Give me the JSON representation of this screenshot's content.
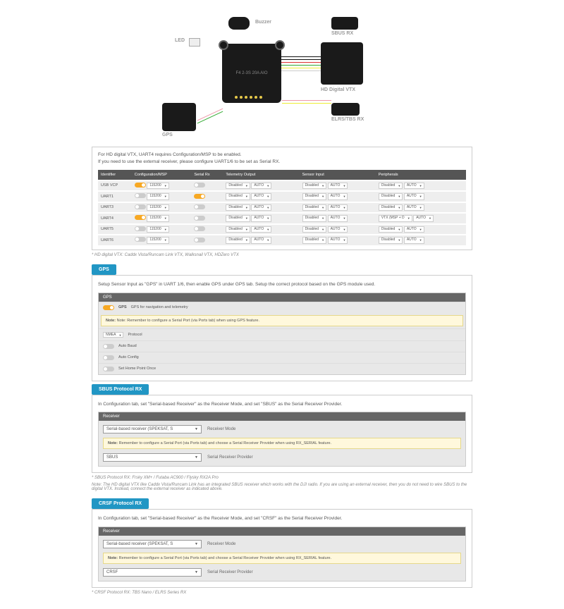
{
  "diagram": {
    "fc_label": "F4 2-3S 20A AIO",
    "labels": {
      "buzzer": "Buzzer",
      "sbus": "SBUS RX",
      "led": "LED",
      "vtx": "HD Digital VTX",
      "gps": "GPS",
      "elrs": "ELRS/TBS RX"
    }
  },
  "inst1": {
    "line1": "For HD digital VTX, UART4 requires Configuration/MSP to be enabled.",
    "line2": "If you need to use the external receiver, please configure UART1/6 to be set as Serial RX.",
    "headers": [
      "Identifier",
      "Configuration/MSP",
      "Serial Rx",
      "Telemetry Output",
      "Sensor Input",
      "Peripherals"
    ],
    "rows": [
      {
        "id": "USB VCP",
        "msp": true,
        "baud": "115200",
        "srx": false,
        "t": "Disabled",
        "s": "Disabled",
        "p": "Disabled"
      },
      {
        "id": "UART1",
        "msp": false,
        "baud": "115200",
        "srx": true,
        "t": "Disabled",
        "s": "Disabled",
        "p": "Disabled"
      },
      {
        "id": "UART3",
        "msp": false,
        "baud": "115200",
        "srx": false,
        "t": "Disabled",
        "s": "Disabled",
        "p": "Disabled"
      },
      {
        "id": "UART4",
        "msp": true,
        "baud": "115200",
        "srx": false,
        "t": "Disabled",
        "s": "Disabled",
        "p": "VTX (MSP + D"
      },
      {
        "id": "UART5",
        "msp": false,
        "baud": "115200",
        "srx": false,
        "t": "Disabled",
        "s": "Disabled",
        "p": "Disabled"
      },
      {
        "id": "UART6",
        "msp": false,
        "baud": "115200",
        "srx": false,
        "t": "Disabled",
        "s": "Disabled",
        "p": "Disabled"
      }
    ]
  },
  "note_vtx": "* HD digital VTX: Caddx Vista/Runcam Link VTX, Walksnail VTX, HDZero VTX",
  "gps": {
    "tab": "GPS",
    "text": "Setup Sensor Input as \"GPS\" in UART 1/6, then enable GPS under GPS tab. Setup the correct protocol based on the GPS module used.",
    "head": "GPS",
    "row1_label": "GPS",
    "row1_desc": "GPS for navigation and telemetry",
    "note": "Note: Remember to configure a Serial Port (via Ports tab) when using GPS feature.",
    "proto": "NMEA",
    "proto_lbl": "Protocol",
    "r2": "Auto Baud",
    "r3": "Auto Config",
    "r4": "Set Home Point Once"
  },
  "sbus": {
    "tab": "SBUS Protocol RX",
    "text": "In Configuration tab, set \"Serial-based Receiver\" as the Receiver Mode, and set \"SBUS\" as the Serial Receiver Provider.",
    "head": "Receiver",
    "mode": "Serial-based receiver (SPEKSAT, S",
    "mode_lbl": "Receiver Mode",
    "note_b": "Note:",
    "note": " Remember to configure a Serial Port (via Ports tab) and choose a Serial Receiver Provider when using RX_SERIAL feature.",
    "prov": "SBUS",
    "prov_lbl": "Serial Receiver Provider"
  },
  "sbus_note1": "* SBUS Protocol RX: Frsky XM+ / Futaba AC900 / Flysky RX2A Pro",
  "sbus_note2": "Note: The HD digital VTX like Caddx Vista/Runcam Link has an integrated SBUS receiver which works with the DJI radio. If you are using an external receiver, then you do not need to wire SBUS to the digital VTX. Instead, connect the external receiver as indicated above.",
  "crsf": {
    "tab": "CRSF Protocol RX",
    "text": "In Configuration tab, set \"Serial-based Receiver\" as the Receiver Mode, and set \"CRSF\" as the Serial Receiver Provider.",
    "head": "Receiver",
    "mode": "Serial-based receiver (SPEKSAT, S",
    "mode_lbl": "Receiver Mode",
    "note_b": "Note:",
    "note": " Remember to configure a Serial Port (via Ports tab) and choose a Serial Receiver Provider when using RX_SERIAL feature.",
    "prov": "CRSF",
    "prov_lbl": "Serial Receiver Provider"
  },
  "crsf_note": "* CRSF Protocol RX: TBS Nano / ELRS Series RX"
}
